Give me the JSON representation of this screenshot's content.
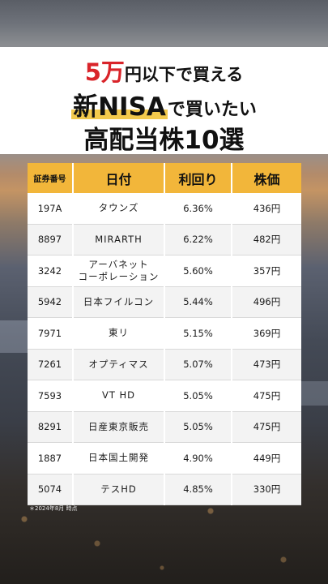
{
  "title": {
    "line1": {
      "num": "5",
      "man": "万",
      "rest": "円以下で買える"
    },
    "line2": {
      "highlight": "新NISA",
      "rest": "で買いたい"
    },
    "line3": "高配当株10選"
  },
  "table": {
    "headers": {
      "code": "証券番号",
      "name": "日付",
      "yield": "利回り",
      "price": "株価"
    },
    "rows": [
      {
        "code": "197A",
        "name": "タウンズ",
        "yield": "6.36%",
        "price": "436円"
      },
      {
        "code": "8897",
        "name": "MIRARTH",
        "yield": "6.22%",
        "price": "482円"
      },
      {
        "code": "3242",
        "name": "アーバネット\nコーポレーション",
        "yield": "5.60%",
        "price": "357円"
      },
      {
        "code": "5942",
        "name": "日本フイルコン",
        "yield": "5.44%",
        "price": "496円"
      },
      {
        "code": "7971",
        "name": "東リ",
        "yield": "5.15%",
        "price": "369円"
      },
      {
        "code": "7261",
        "name": "オプティマス",
        "yield": "5.07%",
        "price": "473円"
      },
      {
        "code": "7593",
        "name": "VT HD",
        "yield": "5.05%",
        "price": "475円"
      },
      {
        "code": "8291",
        "name": "日産東京販売",
        "yield": "5.05%",
        "price": "475円"
      },
      {
        "code": "1887",
        "name": "日本国土開発",
        "yield": "4.90%",
        "price": "449円"
      },
      {
        "code": "5074",
        "name": "テスHD",
        "yield": "4.85%",
        "price": "330円"
      }
    ]
  },
  "note": "＊2024年8月 時点",
  "colors": {
    "accent": "#f2b63a",
    "red": "#d9242a"
  }
}
